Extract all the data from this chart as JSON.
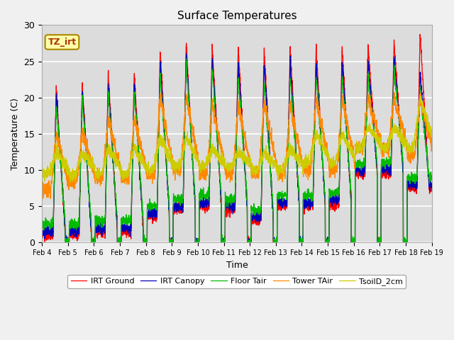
{
  "title": "Surface Temperatures",
  "xlabel": "Time",
  "ylabel": "Temperature (C)",
  "ylim": [
    0,
    30
  ],
  "annotation": "TZ_irt",
  "legend": [
    "IRT Ground",
    "IRT Canopy",
    "Floor Tair",
    "Tower TAir",
    "TsoilD_2cm"
  ],
  "colors": [
    "#FF0000",
    "#0000BB",
    "#00BB00",
    "#FF8800",
    "#CCCC00"
  ],
  "xtick_labels": [
    "Feb 4",
    "Feb 5",
    "Feb 6",
    "Feb 7",
    "Feb 8",
    "Feb 9",
    "Feb 10",
    "Feb 11",
    "Feb 12",
    "Feb 13",
    "Feb 14",
    "Feb 15",
    "Feb 16",
    "Feb 17",
    "Feb 18",
    "Feb 19"
  ],
  "background_color": "#DCDCDC",
  "plot_bg_color": "#DCDCDC",
  "fig_bg_color": "#F0F0F0"
}
